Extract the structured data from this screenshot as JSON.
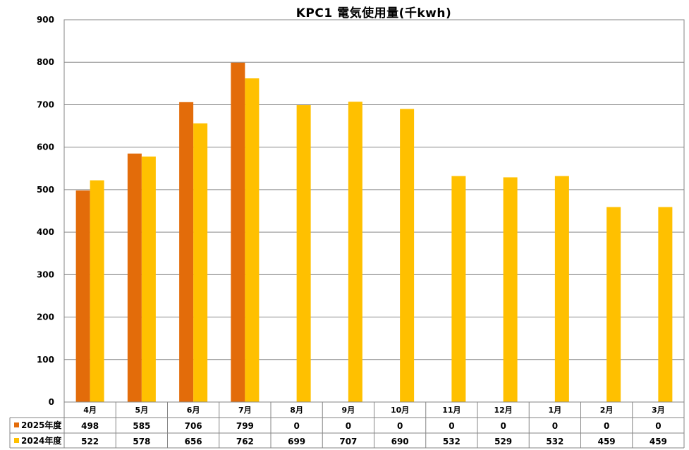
{
  "chart_data": {
    "type": "bar",
    "title": "KPC1 電気使用量(千kwh)",
    "categories": [
      "4月",
      "5月",
      "6月",
      "7月",
      "8月",
      "9月",
      "10月",
      "11月",
      "12月",
      "1月",
      "2月",
      "3月"
    ],
    "series": [
      {
        "name": "2025年度",
        "color": "#E36C0A",
        "values": [
          498,
          585,
          706,
          799,
          0,
          0,
          0,
          0,
          0,
          0,
          0,
          0
        ],
        "labels": [
          "498",
          "585",
          "706",
          "799",
          "0",
          "0",
          "0",
          "0",
          "0",
          "0",
          "0",
          "0"
        ]
      },
      {
        "name": "2024年度",
        "color": "#FFC000",
        "values": [
          522,
          578,
          656,
          762,
          699,
          707,
          690,
          532,
          529,
          532,
          459,
          459
        ],
        "labels": [
          "522",
          "578",
          "656",
          "762",
          "699",
          "707",
          "690",
          "532",
          "529",
          "532",
          "459",
          "459"
        ]
      }
    ],
    "yticks": [
      "0",
      "100",
      "200",
      "300",
      "400",
      "500",
      "600",
      "700",
      "800",
      "900"
    ],
    "ylim": [
      0,
      900
    ],
    "grid": true,
    "legend": "data-table"
  }
}
